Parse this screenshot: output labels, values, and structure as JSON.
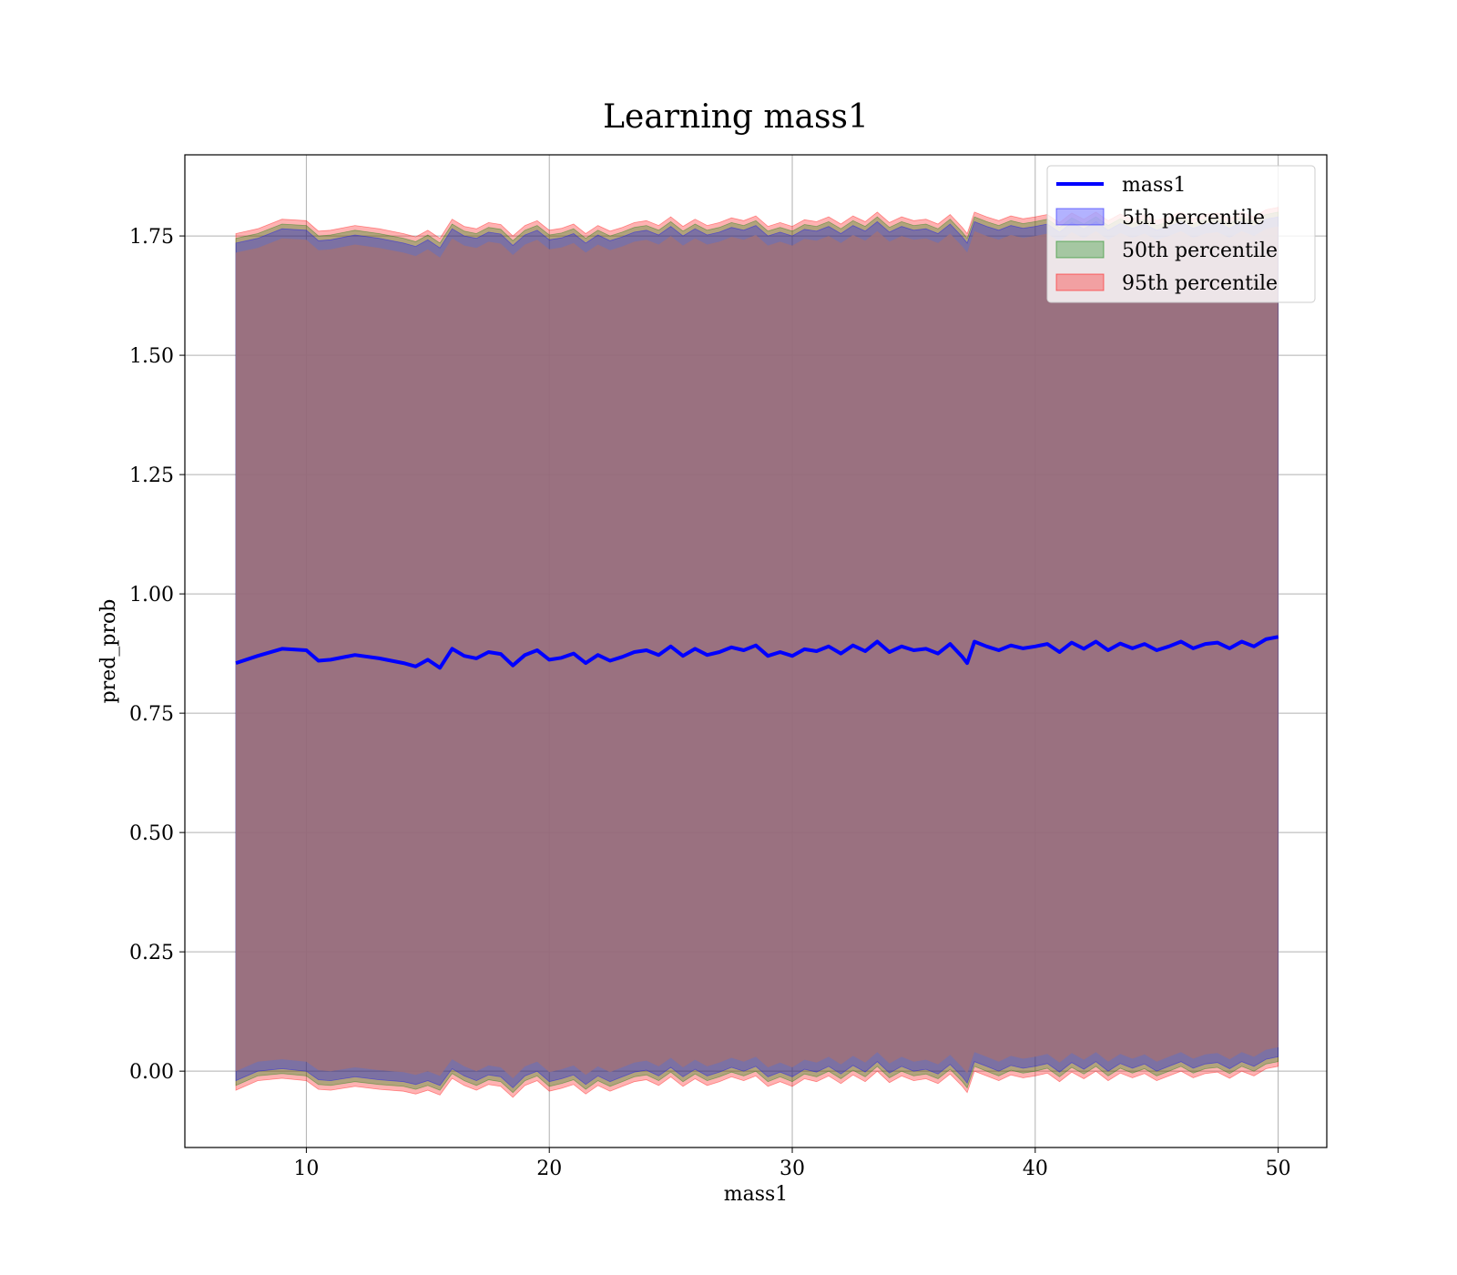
{
  "chart_data": {
    "type": "line",
    "title": "Learning mass1",
    "xlabel": "mass1",
    "ylabel": "pred_prob",
    "xlim": [
      5,
      52
    ],
    "ylim": [
      -0.16,
      1.92
    ],
    "xticks": [
      10,
      20,
      30,
      40,
      50
    ],
    "xtick_labels": [
      "10",
      "20",
      "30",
      "40",
      "50"
    ],
    "yticks": [
      0.0,
      0.25,
      0.5,
      0.75,
      1.0,
      1.25,
      1.5,
      1.75
    ],
    "ytick_labels": [
      "0.00",
      "0.25",
      "0.50",
      "0.75",
      "1.00",
      "1.25",
      "1.50",
      "1.75"
    ],
    "grid": true,
    "legend_position": "top-right",
    "x": [
      7.1,
      8,
      9,
      10,
      10.5,
      11,
      12,
      13,
      14,
      14.5,
      15,
      15.5,
      16,
      16.5,
      17,
      17.5,
      18,
      18.5,
      19,
      19.5,
      20,
      20.5,
      21,
      21.5,
      22,
      22.5,
      23,
      23.5,
      24,
      24.5,
      25,
      25.5,
      26,
      26.5,
      27,
      27.5,
      28,
      28.5,
      29,
      29.5,
      30,
      30.5,
      31,
      31.5,
      32,
      32.5,
      33,
      33.5,
      34,
      34.5,
      35,
      35.5,
      36,
      36.5,
      37,
      37.2,
      37.5,
      38,
      38.5,
      39,
      39.5,
      40,
      40.5,
      41,
      41.5,
      42,
      42.5,
      43,
      43.5,
      44,
      44.5,
      45,
      45.5,
      46,
      46.5,
      47,
      47.5,
      48,
      48.5,
      49,
      49.5,
      50
    ],
    "series": [
      {
        "name": "mass1",
        "kind": "line",
        "color": "#0000ff",
        "values": [
          0.855,
          0.87,
          0.885,
          0.882,
          0.86,
          0.862,
          0.872,
          0.865,
          0.855,
          0.848,
          0.862,
          0.845,
          0.885,
          0.87,
          0.865,
          0.878,
          0.874,
          0.85,
          0.872,
          0.882,
          0.862,
          0.866,
          0.875,
          0.855,
          0.872,
          0.86,
          0.868,
          0.878,
          0.882,
          0.872,
          0.89,
          0.87,
          0.885,
          0.872,
          0.878,
          0.888,
          0.882,
          0.892,
          0.87,
          0.878,
          0.87,
          0.884,
          0.88,
          0.89,
          0.875,
          0.892,
          0.88,
          0.9,
          0.878,
          0.89,
          0.882,
          0.885,
          0.875,
          0.895,
          0.868,
          0.855,
          0.9,
          0.89,
          0.882,
          0.892,
          0.886,
          0.89,
          0.895,
          0.878,
          0.898,
          0.885,
          0.9,
          0.882,
          0.896,
          0.886,
          0.895,
          0.882,
          0.89,
          0.9,
          0.886,
          0.895,
          0.898,
          0.886,
          0.9,
          0.89,
          0.905,
          0.91
        ]
      }
    ],
    "bands": [
      {
        "name": "5th percentile",
        "color": "#0000ff",
        "opacity": 0.3,
        "offset_low": 0.0,
        "offset_high": 0.0
      },
      {
        "name": "50th percentile",
        "color": "#008000",
        "opacity": 0.3,
        "offset_low": -0.01,
        "offset_high": 0.01
      },
      {
        "name": "95th percentile",
        "color": "#ff0000",
        "opacity": 0.3,
        "offset_low": -0.02,
        "offset_high": 0.02
      }
    ],
    "band_lower": [
      -0.02,
      0.0,
      0.005,
      0.0,
      -0.018,
      -0.02,
      -0.012,
      -0.018,
      -0.022,
      -0.028,
      -0.02,
      -0.03,
      0.005,
      -0.01,
      -0.02,
      -0.008,
      -0.012,
      -0.035,
      -0.01,
      0.0,
      -0.022,
      -0.016,
      -0.008,
      -0.028,
      -0.01,
      -0.022,
      -0.012,
      -0.002,
      0.002,
      -0.01,
      0.008,
      -0.012,
      0.004,
      -0.01,
      -0.002,
      0.008,
      0.0,
      0.01,
      -0.012,
      -0.002,
      -0.012,
      0.004,
      -0.002,
      0.01,
      -0.006,
      0.012,
      -0.002,
      0.02,
      -0.004,
      0.01,
      0.0,
      0.004,
      -0.006,
      0.014,
      -0.012,
      -0.025,
      0.02,
      0.01,
      0.0,
      0.012,
      0.006,
      0.01,
      0.016,
      -0.002,
      0.018,
      0.004,
      0.02,
      0.0,
      0.016,
      0.006,
      0.015,
      0.0,
      0.01,
      0.02,
      0.006,
      0.015,
      0.018,
      0.005,
      0.02,
      0.01,
      0.025,
      0.03
    ],
    "band_upper": [
      1.735,
      1.745,
      1.765,
      1.762,
      1.74,
      1.742,
      1.752,
      1.745,
      1.735,
      1.728,
      1.742,
      1.725,
      1.765,
      1.75,
      1.745,
      1.758,
      1.754,
      1.73,
      1.752,
      1.762,
      1.742,
      1.746,
      1.755,
      1.735,
      1.752,
      1.74,
      1.748,
      1.758,
      1.762,
      1.752,
      1.77,
      1.75,
      1.765,
      1.752,
      1.758,
      1.768,
      1.762,
      1.772,
      1.75,
      1.758,
      1.75,
      1.764,
      1.76,
      1.77,
      1.755,
      1.772,
      1.76,
      1.78,
      1.758,
      1.77,
      1.762,
      1.765,
      1.755,
      1.775,
      1.748,
      1.735,
      1.78,
      1.77,
      1.762,
      1.772,
      1.766,
      1.77,
      1.775,
      1.758,
      1.778,
      1.765,
      1.78,
      1.762,
      1.776,
      1.766,
      1.775,
      1.762,
      1.77,
      1.78,
      1.766,
      1.775,
      1.778,
      1.766,
      1.78,
      1.77,
      1.785,
      1.79
    ],
    "colors": {
      "fill_overlap": "#a0717a",
      "line": "#0000ff"
    }
  }
}
